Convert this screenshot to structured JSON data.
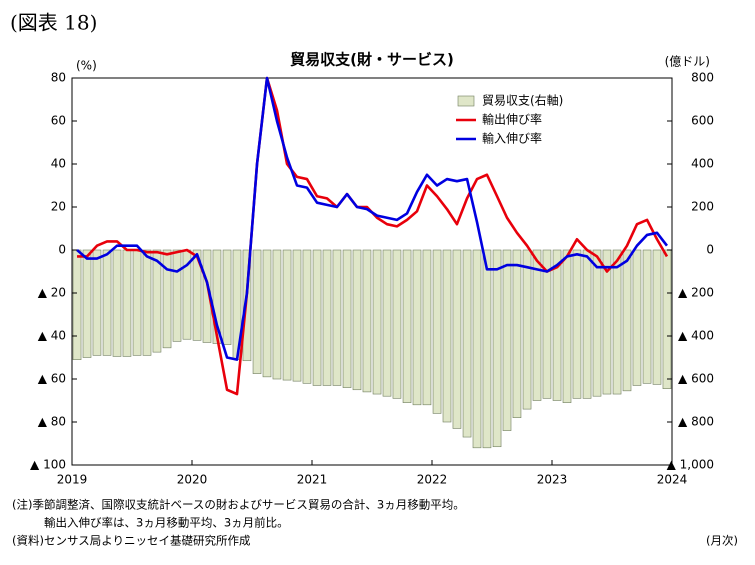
{
  "figure_label": "(図表 18)",
  "chart_data": {
    "type": "bar",
    "title": "貿易収支(財・サービス)",
    "y_unit": "(%)",
    "y2_unit": "(億ドル)",
    "x_unit": "(月次)",
    "notes": [
      "(注)季節調整済、国際収支統計ベースの財およびサービス貿易の合計、3ヵ月移動平均。",
      "輸出入伸び率は、3ヵ月移動平均、3ヵ月前比。",
      "(資料)センサス局よりニッセイ基礎研究所作成"
    ],
    "xlim": [
      2019,
      2024
    ],
    "xticks": [
      2019,
      2020,
      2021,
      2022,
      2023,
      2024
    ],
    "x": [
      2019.042,
      2019.125,
      2019.208,
      2019.292,
      2019.375,
      2019.458,
      2019.542,
      2019.625,
      2019.708,
      2019.792,
      2019.875,
      2019.958,
      2020.042,
      2020.125,
      2020.208,
      2020.292,
      2020.375,
      2020.458,
      2020.542,
      2020.625,
      2020.708,
      2020.792,
      2020.875,
      2020.958,
      2021.042,
      2021.125,
      2021.208,
      2021.292,
      2021.375,
      2021.458,
      2021.542,
      2021.625,
      2021.708,
      2021.792,
      2021.875,
      2021.958,
      2022.042,
      2022.125,
      2022.208,
      2022.292,
      2022.375,
      2022.458,
      2022.542,
      2022.625,
      2022.708,
      2022.792,
      2022.875,
      2022.958,
      2023.042,
      2023.125,
      2023.208,
      2023.292,
      2023.375,
      2023.458,
      2023.542,
      2023.625,
      2023.708,
      2023.792,
      2023.875,
      2023.958
    ],
    "ylim": [
      -100,
      80
    ],
    "yticks": [
      80,
      60,
      40,
      20,
      0,
      {
        "value": -20,
        "label": "▲ 20"
      },
      {
        "value": -40,
        "label": "▲ 40"
      },
      {
        "value": -60,
        "label": "▲ 60"
      },
      {
        "value": -80,
        "label": "▲ 80"
      },
      {
        "value": -100,
        "label": "▲ 100"
      }
    ],
    "y2lim": [
      -1000,
      800
    ],
    "y2ticks": [
      800,
      600,
      400,
      200,
      0,
      {
        "value": -200,
        "label": "▲ 200"
      },
      {
        "value": -400,
        "label": "▲ 400"
      },
      {
        "value": -600,
        "label": "▲ 600"
      },
      {
        "value": -800,
        "label": "▲ 800"
      },
      {
        "value": -1000,
        "label": "▲ 1,000"
      }
    ],
    "legend": "upper right",
    "series": [
      {
        "name": "貿易収支(右軸)",
        "type": "bar",
        "axis": "y2",
        "color": "#dfe6c8",
        "values": [
          -510,
          -500,
          -490,
          -490,
          -495,
          -495,
          -490,
          -490,
          -475,
          -455,
          -425,
          -415,
          -420,
          -430,
          -435,
          -440,
          -510,
          -515,
          -575,
          -590,
          -600,
          -605,
          -610,
          -620,
          -630,
          -630,
          -630,
          -640,
          -650,
          -660,
          -670,
          -680,
          -690,
          -710,
          -720,
          -720,
          -760,
          -800,
          -830,
          -870,
          -920,
          -920,
          -915,
          -840,
          -780,
          -740,
          -700,
          -690,
          -700,
          -710,
          -690,
          -690,
          -680,
          -670,
          -670,
          -655,
          -630,
          -620,
          -625,
          -645
        ]
      },
      {
        "name": "輸出伸び率",
        "type": "line",
        "color": "#e8000b",
        "values": [
          -3,
          -3,
          2,
          4,
          4,
          0,
          0,
          -1,
          -1,
          -2,
          -1,
          0,
          -3,
          -15,
          -40,
          -65,
          -67,
          -20,
          40,
          80,
          65,
          40,
          34,
          33,
          25,
          24,
          20,
          26,
          20,
          20,
          15,
          12,
          11,
          14,
          18,
          30,
          25,
          19,
          12,
          24,
          33,
          35,
          25,
          15,
          8,
          2,
          -5,
          -10,
          -8,
          -3,
          5,
          0,
          -3,
          -10,
          -5,
          2,
          12,
          14,
          5,
          -3
        ]
      },
      {
        "name": "輸入伸び率",
        "type": "line",
        "color": "#0000e0",
        "values": [
          0,
          -4,
          -4,
          -2,
          2,
          2,
          2,
          -3,
          -5,
          -9,
          -10,
          -7,
          -2,
          -15,
          -35,
          -50,
          -51,
          -20,
          40,
          80,
          60,
          43,
          30,
          29,
          22,
          21,
          20,
          26,
          20,
          19,
          16,
          15,
          14,
          17,
          27,
          35,
          30,
          33,
          32,
          33,
          13,
          -9,
          -9,
          -7,
          -7,
          -8,
          -9,
          -10,
          -7,
          -3,
          -2,
          -3,
          -8,
          -8,
          -8,
          -5,
          2,
          7,
          8,
          2
        ]
      }
    ]
  }
}
